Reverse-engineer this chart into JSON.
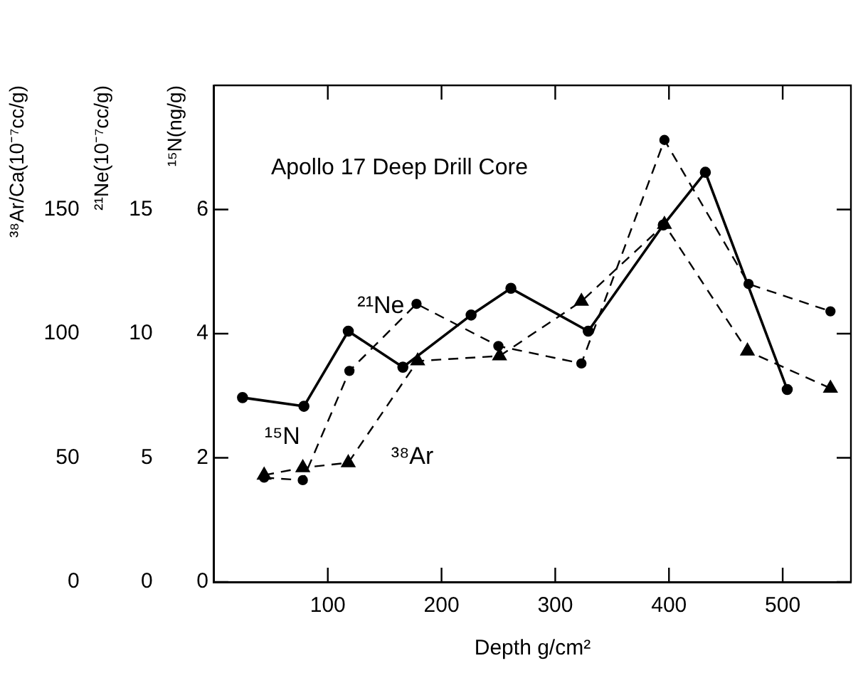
{
  "chart_data": {
    "type": "line",
    "title": "Apollo 17 Deep Drill Core",
    "xlabel": "Depth g/cm²",
    "ylabel": "¹⁵N(ng/g)",
    "y2label": "²¹Ne(10⁻⁷cc/g)",
    "y3label": "³⁸Ar/Ca(10⁻⁷cc/g)",
    "xlim": [
      0,
      560
    ],
    "xticks": [
      100,
      200,
      300,
      400,
      500
    ],
    "ylim": [
      0,
      8
    ],
    "yticks": [
      0,
      2,
      4,
      6
    ],
    "y2lim": [
      0,
      20
    ],
    "y2ticks": [
      0,
      5,
      10,
      15
    ],
    "y3lim": [
      0,
      200
    ],
    "y3ticks": [
      0,
      50,
      100,
      150
    ],
    "grid": false,
    "legend": false,
    "series": [
      {
        "name": "¹⁵N",
        "color": "#000000",
        "axis": "y",
        "marker": "circle",
        "line_style": "solid",
        "x": [
          25,
          79,
          118,
          166,
          226,
          261,
          329,
          395,
          432,
          504
        ],
        "values": [
          2.97,
          2.83,
          4.04,
          3.46,
          4.3,
          4.73,
          4.04,
          5.75,
          6.6,
          3.1
        ]
      },
      {
        "name": "²¹Ne",
        "color": "#000000",
        "axis": "y2",
        "marker": "circle",
        "line_style": "dashed",
        "x": [
          44,
          78,
          119,
          178,
          250,
          323,
          396,
          470,
          542
        ],
        "values": [
          4.2,
          4.1,
          8.5,
          11.2,
          9.5,
          8.8,
          17.8,
          12.0,
          10.9
        ]
      },
      {
        "name": "³⁸Ar",
        "color": "#000000",
        "axis": "y3",
        "marker": "triangle",
        "line_style": "dashed",
        "x": [
          44,
          78,
          118,
          179,
          251,
          323,
          396,
          469,
          542
        ],
        "values": [
          43,
          46,
          48,
          89,
          91,
          113,
          144,
          93,
          78
        ]
      }
    ]
  }
}
